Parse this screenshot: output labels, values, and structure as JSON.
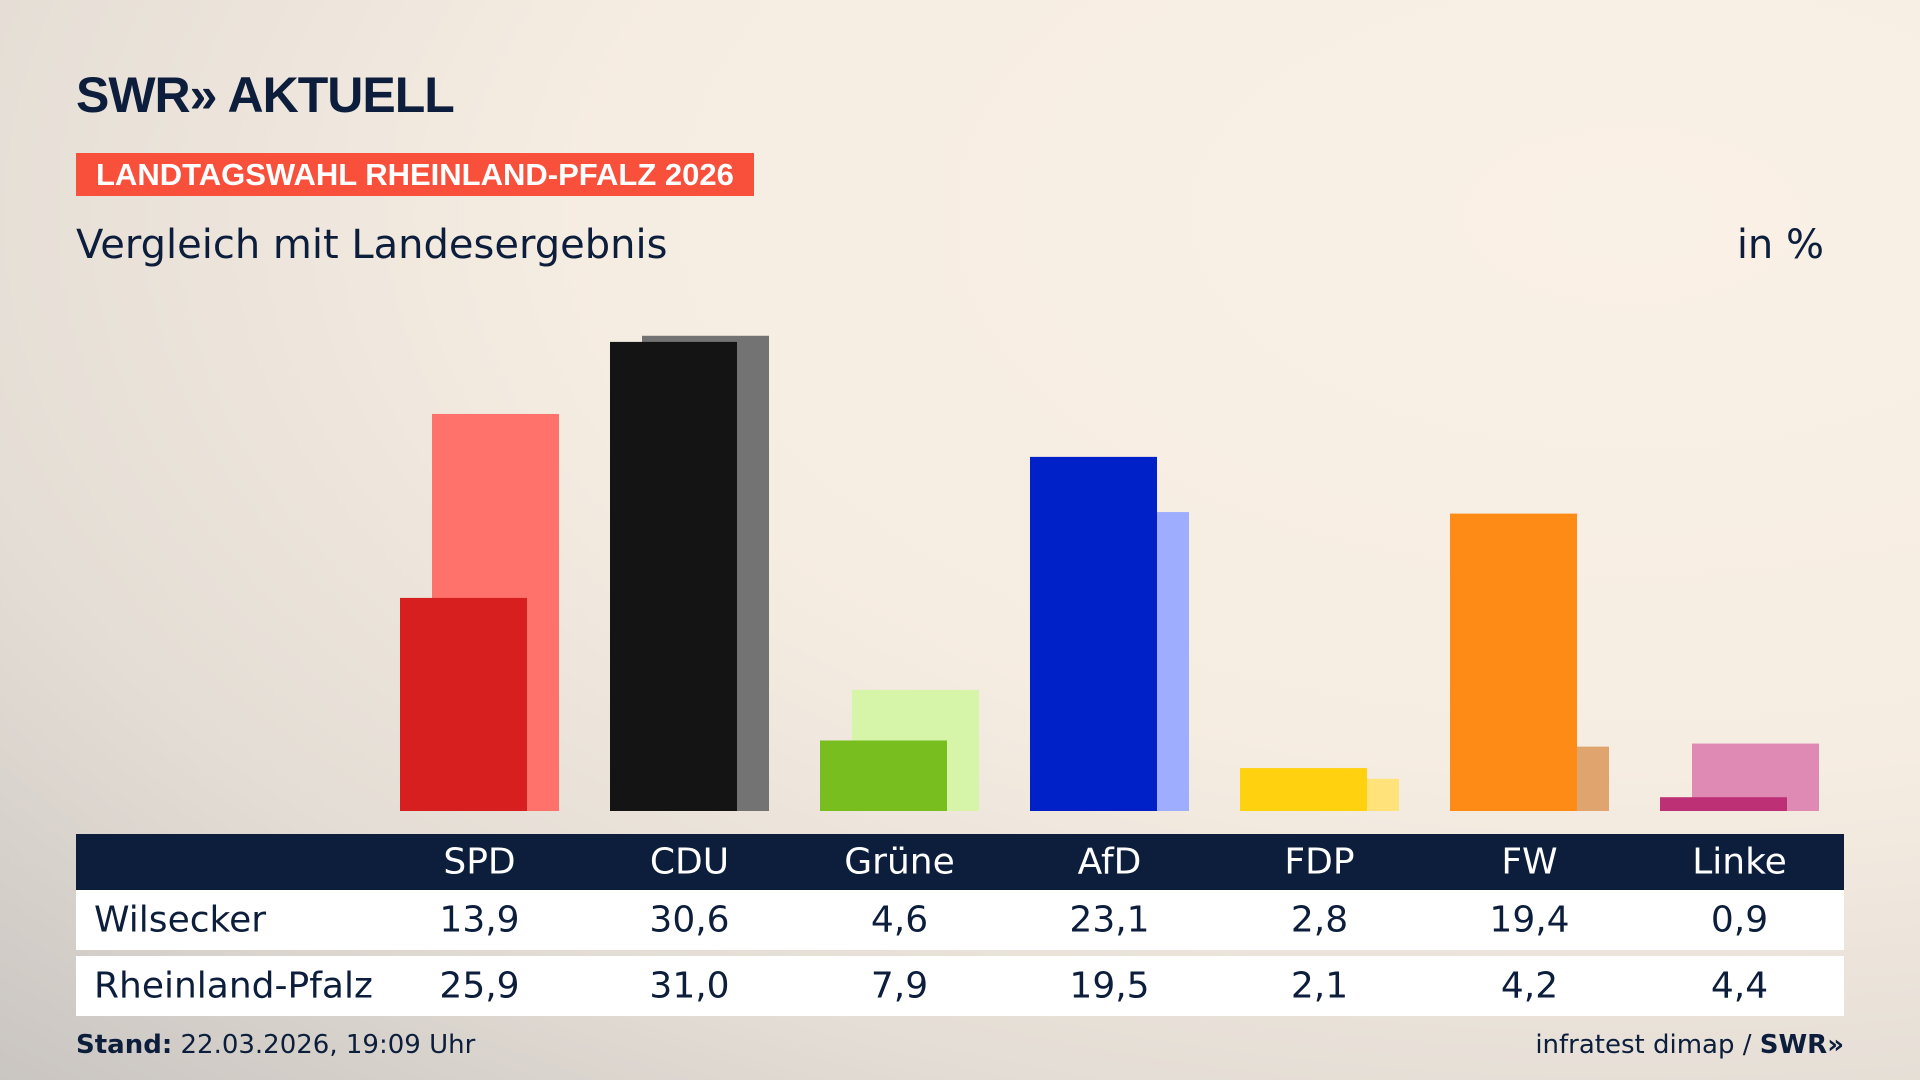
{
  "header": {
    "logo": "SWR» AKTUELL",
    "banner": "LANDTAGSWAHL RHEINLAND-PFALZ 2026",
    "subtitle": "Vergleich mit Landesergebnis",
    "unit": "in %"
  },
  "chart_data": {
    "type": "bar",
    "categories": [
      "SPD",
      "CDU",
      "Grüne",
      "AfD",
      "FDP",
      "FW",
      "Linke"
    ],
    "series": [
      {
        "name": "Wilsecker",
        "values": [
          13.9,
          30.6,
          4.6,
          23.1,
          2.8,
          19.4,
          0.9
        ],
        "display": [
          "13,9",
          "30,6",
          "4,6",
          "23,1",
          "2,8",
          "19,4",
          "0,9"
        ],
        "colors": [
          "#d71f1f",
          "#141414",
          "#78be1e",
          "#0021c8",
          "#ffd10f",
          "#ff8b17",
          "#be3075"
        ]
      },
      {
        "name": "Rheinland-Pfalz",
        "values": [
          25.9,
          31.0,
          7.9,
          19.5,
          2.1,
          4.2,
          4.4
        ],
        "display": [
          "25,9",
          "31,0",
          "7,9",
          "19,5",
          "2,1",
          "4,2",
          "4,4"
        ],
        "colors": [
          "#ff726b",
          "#737373",
          "#d6f5a8",
          "#9fadff",
          "#ffe37a",
          "#e0a46e",
          "#de8ab4"
        ]
      }
    ],
    "ylim": [
      0,
      31
    ],
    "grid": false,
    "legend": "table-below"
  },
  "footer": {
    "stand_label": "Stand:",
    "stand_value": " 22.03.2026, 19:09 Uhr",
    "source": "infratest dimap / ",
    "source_logo": "SWR»"
  }
}
